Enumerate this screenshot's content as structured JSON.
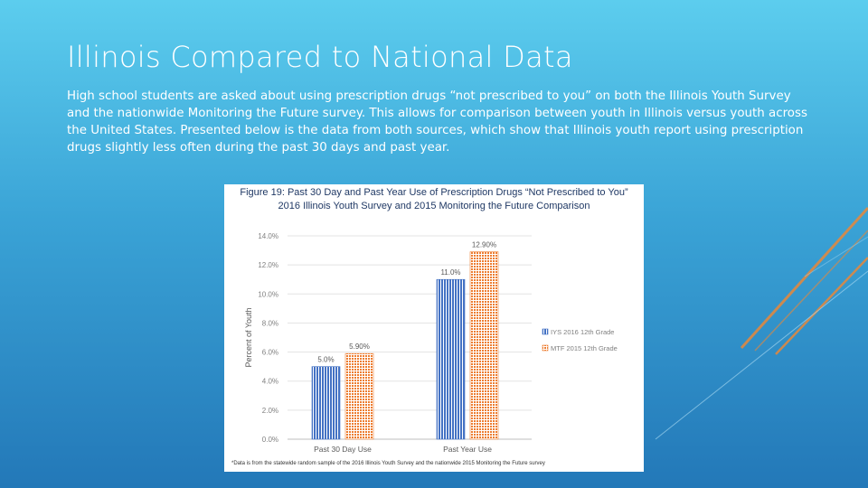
{
  "slide": {
    "title": "Illinois Compared to National Data",
    "body": "High school students are asked about using prescription drugs “not prescribed to you” on both the Illinois Youth Survey and the nationwide Monitoring the Future survey. This allows for comparison between youth in Illinois versus youth across the United States. Presented below is the data from both sources, which show that Illinois youth report using prescription drugs slightly less often during the past 30 days and past year."
  },
  "figure": {
    "caption_line1": "Figure 19: Past 30 Day and Past Year Use of Prescription Drugs “Not Prescribed to You”",
    "caption_line2": "2016 Illinois Youth Survey and 2015 Monitoring the Future Comparison",
    "footnote": "*Data is from the statewide random sample of the 2016 Illinois Youth Survey and the nationwide 2015 Monitoring the Future survey"
  },
  "colors": {
    "iys": "#4472c4",
    "mtf": "#ed7d31"
  },
  "chart_data": {
    "type": "bar",
    "title": "Figure 19: Past 30 Day and Past Year Use of Prescription Drugs “Not Prescribed to You” — 2016 Illinois Youth Survey and 2015 Monitoring the Future Comparison",
    "xlabel": "",
    "ylabel": "Percent of Youth",
    "ylim": [
      0,
      14
    ],
    "yticks": [
      "0.0%",
      "2.0%",
      "4.0%",
      "6.0%",
      "8.0%",
      "10.0%",
      "12.0%",
      "14.0%"
    ],
    "categories": [
      "Past 30 Day Use",
      "Past Year Use"
    ],
    "series": [
      {
        "name": "IYS 2016 12th Grade",
        "values": [
          5.0,
          11.0
        ],
        "labels": [
          "5.0%",
          "11.0%"
        ]
      },
      {
        "name": "MTF 2015 12th Grade",
        "values": [
          5.9,
          12.9
        ],
        "labels": [
          "5.90%",
          "12.90%"
        ]
      }
    ],
    "grid": true,
    "legend": "right"
  }
}
